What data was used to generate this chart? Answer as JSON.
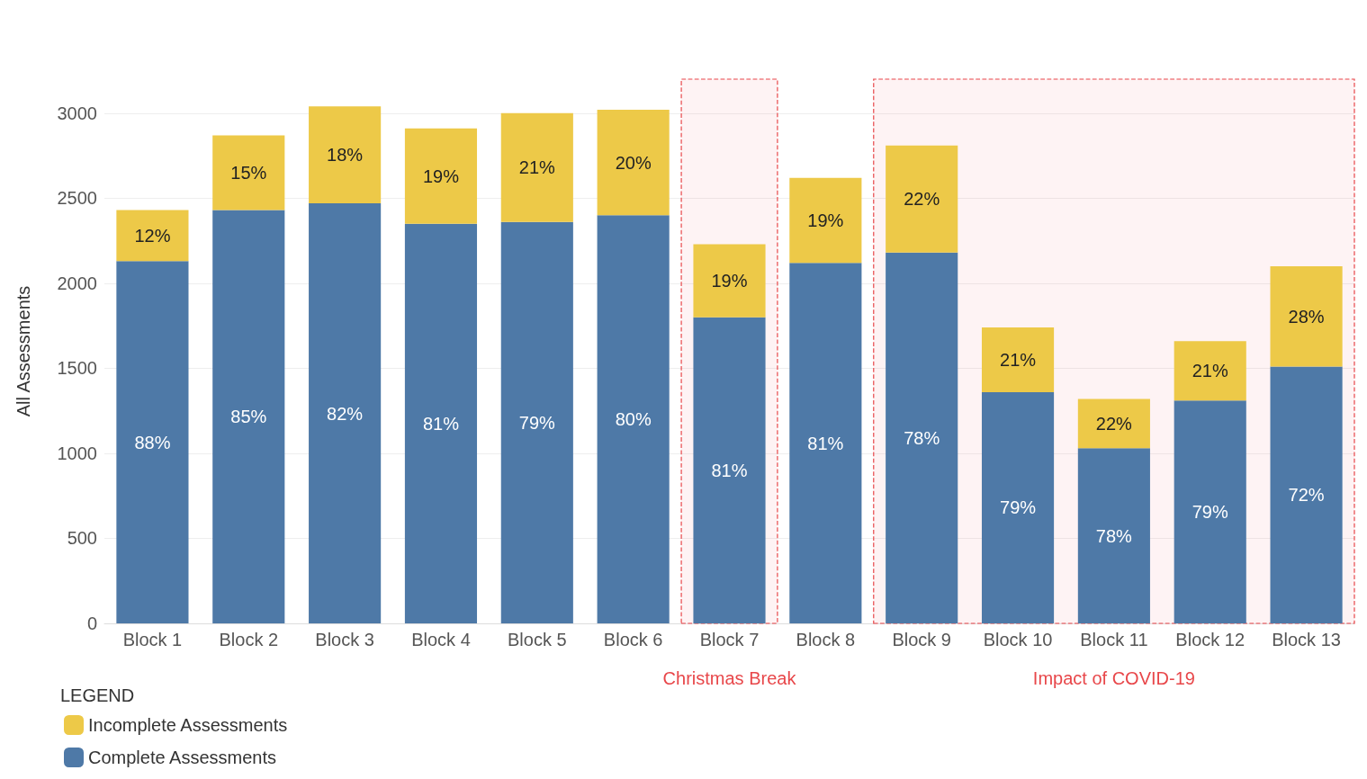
{
  "chart_data": {
    "type": "bar",
    "stacked": true,
    "ylabel": "All Assessments",
    "legend_title": "LEGEND",
    "legend": "bottom left",
    "grid": "y",
    "categories": [
      "Block 1",
      "Block 2",
      "Block 3",
      "Block 4",
      "Block 5",
      "Block 6",
      "Block 7",
      "Block 8",
      "Block 9",
      "Block 10",
      "Block 11",
      "Block 12",
      "Block 13"
    ],
    "series": [
      {
        "name": "Complete Assessments",
        "color": "#4e79a7",
        "values": [
          2130,
          2430,
          2470,
          2350,
          2360,
          2400,
          1800,
          2120,
          2180,
          1360,
          1030,
          1310,
          1510
        ]
      },
      {
        "name": "Incomplete Assessments",
        "color": "#edc948",
        "values": [
          300,
          440,
          570,
          560,
          640,
          620,
          430,
          500,
          630,
          380,
          290,
          350,
          590
        ]
      }
    ],
    "ylim": [
      0,
      3200
    ],
    "yticks": [
      0,
      500,
      1000,
      1500,
      2000,
      2500,
      3000
    ],
    "annotations": [
      "88%",
      "85%",
      "82%",
      "81%",
      "79%",
      "80%",
      "81%",
      "81%",
      "78%",
      "79%",
      "78%",
      "79%",
      "72%",
      "12%",
      "15%",
      "18%",
      "19%",
      "21%",
      "20%",
      "19%",
      "19%",
      "22%",
      "21%",
      "22%",
      "21%",
      "28%"
    ],
    "bands": [
      {
        "axis": "x",
        "from": "Block 7",
        "to": "Block 7",
        "label": "Christmas Break",
        "color": "#e8474a"
      },
      {
        "axis": "x",
        "from": "Block 9",
        "to": "Block 13",
        "label": "Impact of COVID-19",
        "color": "#e8474a"
      }
    ]
  }
}
